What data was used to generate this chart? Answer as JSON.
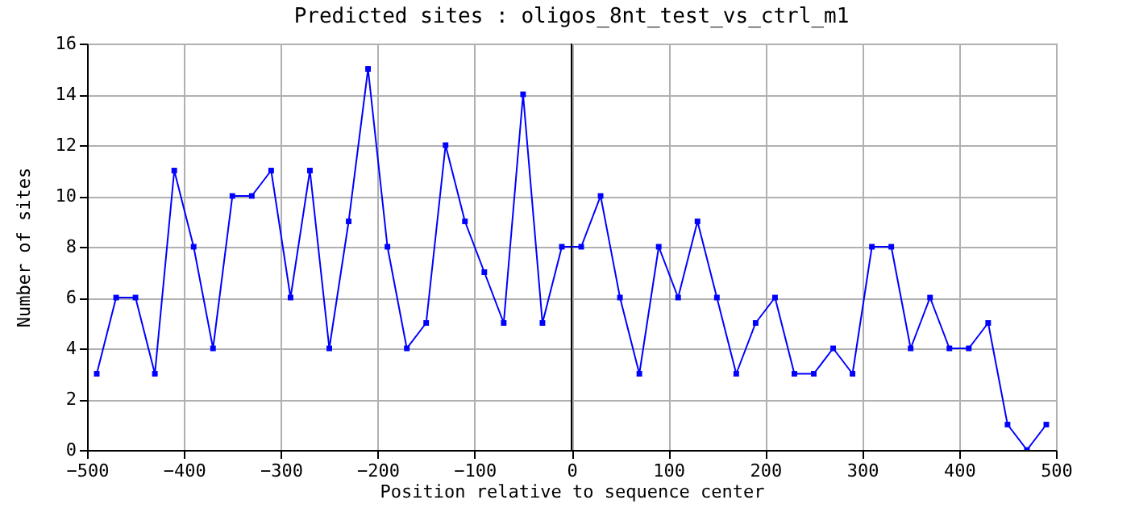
{
  "chart_data": {
    "type": "line",
    "title": "Predicted sites : oligos_8nt_test_vs_ctrl_m1",
    "xlabel": "Position relative to sequence center",
    "ylabel": "Number of sites",
    "x": [
      -490,
      -470,
      -450,
      -430,
      -410,
      -390,
      -370,
      -350,
      -330,
      -310,
      -290,
      -270,
      -250,
      -230,
      -210,
      -190,
      -170,
      -150,
      -130,
      -110,
      -90,
      -70,
      -50,
      -30,
      -10,
      10,
      30,
      50,
      70,
      90,
      110,
      130,
      150,
      170,
      190,
      210,
      230,
      250,
      270,
      290,
      310,
      330,
      350,
      370,
      390,
      410,
      430,
      450,
      470,
      490
    ],
    "series": [
      {
        "color": "#0000ff",
        "values": [
          3,
          6,
          6,
          3,
          11,
          8,
          4,
          10,
          10,
          11,
          6,
          11,
          4,
          9,
          15,
          8,
          4,
          5,
          12,
          9,
          7,
          5,
          14,
          5,
          8,
          8,
          10,
          6,
          3,
          8,
          6,
          9,
          6,
          3,
          5,
          6,
          3,
          3,
          4,
          3,
          8,
          8,
          4,
          6,
          4,
          4,
          5,
          1,
          0,
          1
        ]
      }
    ],
    "xlim": [
      -500,
      500
    ],
    "xticks": [
      -500,
      -400,
      -300,
      -200,
      -100,
      0,
      100,
      200,
      300,
      400,
      500
    ],
    "ylim": [
      0,
      16
    ],
    "yticks": [
      0,
      2,
      4,
      6,
      8,
      10,
      12,
      14,
      16
    ],
    "ref_lines": [
      {
        "axis": "x",
        "value": 0,
        "color": "#000000"
      }
    ],
    "grid": true,
    "marker": "square",
    "line_style": "solid"
  }
}
